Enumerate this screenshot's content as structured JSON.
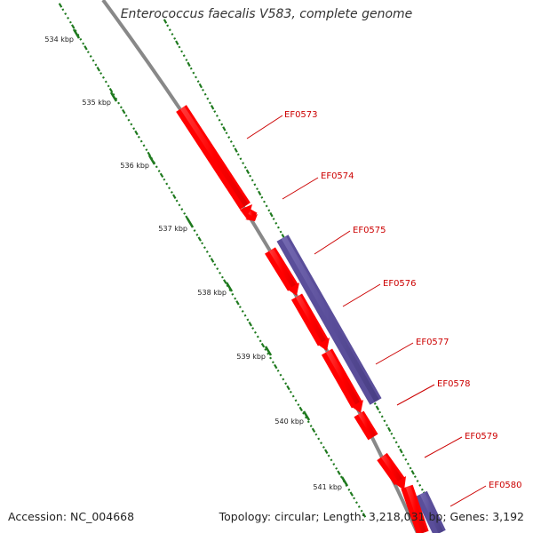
{
  "header": {
    "title": "Enterococcus faecalis V583, complete genome"
  },
  "footer": {
    "accession": "Accession: NC_004668",
    "summary": "Topology: circular; Length: 3,218,031 bp; Genes: 3,192"
  },
  "colors": {
    "forward_strand": "#ff0000",
    "reverse_strand": "#5a4e9a",
    "backbone": "#888888",
    "tick": "#1f7a1f",
    "label": "#cc0000"
  },
  "ticks": [
    {
      "label": "534 kbp"
    },
    {
      "label": "535 kbp"
    },
    {
      "label": "536 kbp"
    },
    {
      "label": "537 kbp"
    },
    {
      "label": "538 kbp"
    },
    {
      "label": "539 kbp"
    },
    {
      "label": "540 kbp"
    },
    {
      "label": "541 kbp"
    }
  ],
  "genes": [
    {
      "name": "EF0573",
      "strand": "forward"
    },
    {
      "name": "EF0574",
      "strand": "forward"
    },
    {
      "name": "EF0575",
      "strand": "reverse"
    },
    {
      "name": "EF0576",
      "strand": "forward"
    },
    {
      "name": "EF0577",
      "strand": "forward"
    },
    {
      "name": "EF0578",
      "strand": "forward"
    },
    {
      "name": "EF0579",
      "strand": "forward"
    },
    {
      "name": "EF0580",
      "strand": "reverse"
    }
  ]
}
